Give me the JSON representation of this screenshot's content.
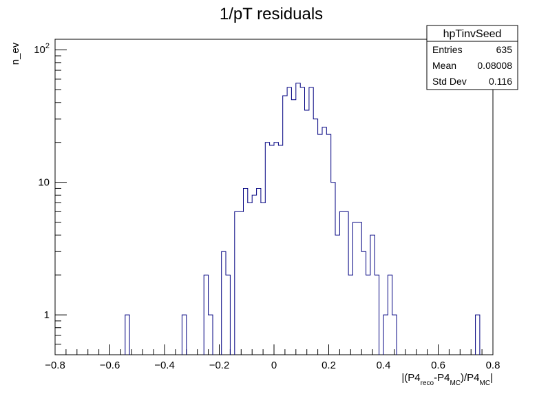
{
  "chart_data": {
    "type": "histogram",
    "title": "1/pT residuals",
    "xlabel": {
      "prefix": "|(P4",
      "sub1": "reco",
      "mid": "-P4",
      "sub2": "MC",
      "mid2": ")/P4",
      "sub3": "MC",
      "suffix": "|"
    },
    "ylabel": "n_ev",
    "xlim": [
      -0.8,
      0.8
    ],
    "ylim": [
      0.5,
      120
    ],
    "ylog": true,
    "x_ticks": [
      -0.8,
      -0.6,
      -0.4,
      -0.2,
      0,
      0.2,
      0.4,
      0.6,
      0.8
    ],
    "x_tick_labels": [
      "−0.8",
      "−0.6",
      "−0.4",
      "−0.2",
      "0",
      "0.2",
      "0.4",
      "0.6",
      "0.8"
    ],
    "y_major_ticks": [
      1,
      10,
      100
    ],
    "y_tick_labels": [
      "1",
      "10",
      "10"
    ],
    "y_tick_sup": [
      "",
      "",
      "2"
    ],
    "bin_width": 0.016,
    "bins": [
      {
        "x": -0.544,
        "y": 1
      },
      {
        "x": -0.336,
        "y": 1
      },
      {
        "x": -0.256,
        "y": 2
      },
      {
        "x": -0.24,
        "y": 1
      },
      {
        "x": -0.192,
        "y": 3
      },
      {
        "x": -0.176,
        "y": 2
      },
      {
        "x": -0.144,
        "y": 6
      },
      {
        "x": -0.128,
        "y": 6
      },
      {
        "x": -0.112,
        "y": 9
      },
      {
        "x": -0.096,
        "y": 7
      },
      {
        "x": -0.08,
        "y": 8
      },
      {
        "x": -0.064,
        "y": 9
      },
      {
        "x": -0.048,
        "y": 7
      },
      {
        "x": -0.032,
        "y": 20
      },
      {
        "x": -0.016,
        "y": 19
      },
      {
        "x": 0.0,
        "y": 20
      },
      {
        "x": 0.016,
        "y": 19
      },
      {
        "x": 0.032,
        "y": 45
      },
      {
        "x": 0.048,
        "y": 52
      },
      {
        "x": 0.064,
        "y": 42
      },
      {
        "x": 0.08,
        "y": 56
      },
      {
        "x": 0.096,
        "y": 52
      },
      {
        "x": 0.112,
        "y": 35
      },
      {
        "x": 0.128,
        "y": 52
      },
      {
        "x": 0.144,
        "y": 30
      },
      {
        "x": 0.16,
        "y": 23
      },
      {
        "x": 0.176,
        "y": 26
      },
      {
        "x": 0.192,
        "y": 23
      },
      {
        "x": 0.208,
        "y": 10
      },
      {
        "x": 0.224,
        "y": 4
      },
      {
        "x": 0.24,
        "y": 6
      },
      {
        "x": 0.256,
        "y": 6
      },
      {
        "x": 0.272,
        "y": 2
      },
      {
        "x": 0.288,
        "y": 5
      },
      {
        "x": 0.304,
        "y": 5
      },
      {
        "x": 0.32,
        "y": 3
      },
      {
        "x": 0.336,
        "y": 2
      },
      {
        "x": 0.352,
        "y": 4
      },
      {
        "x": 0.368,
        "y": 2
      },
      {
        "x": 0.4,
        "y": 1
      },
      {
        "x": 0.416,
        "y": 2
      },
      {
        "x": 0.432,
        "y": 1
      },
      {
        "x": 0.736,
        "y": 1
      }
    ],
    "line_color": "#000080"
  },
  "stats_box": {
    "name": "hpTinvSeed",
    "rows": [
      {
        "label": "Entries",
        "value": "635"
      },
      {
        "label": "Mean",
        "value": "0.08008"
      },
      {
        "label": "Std Dev",
        "value": "0.116"
      }
    ]
  }
}
